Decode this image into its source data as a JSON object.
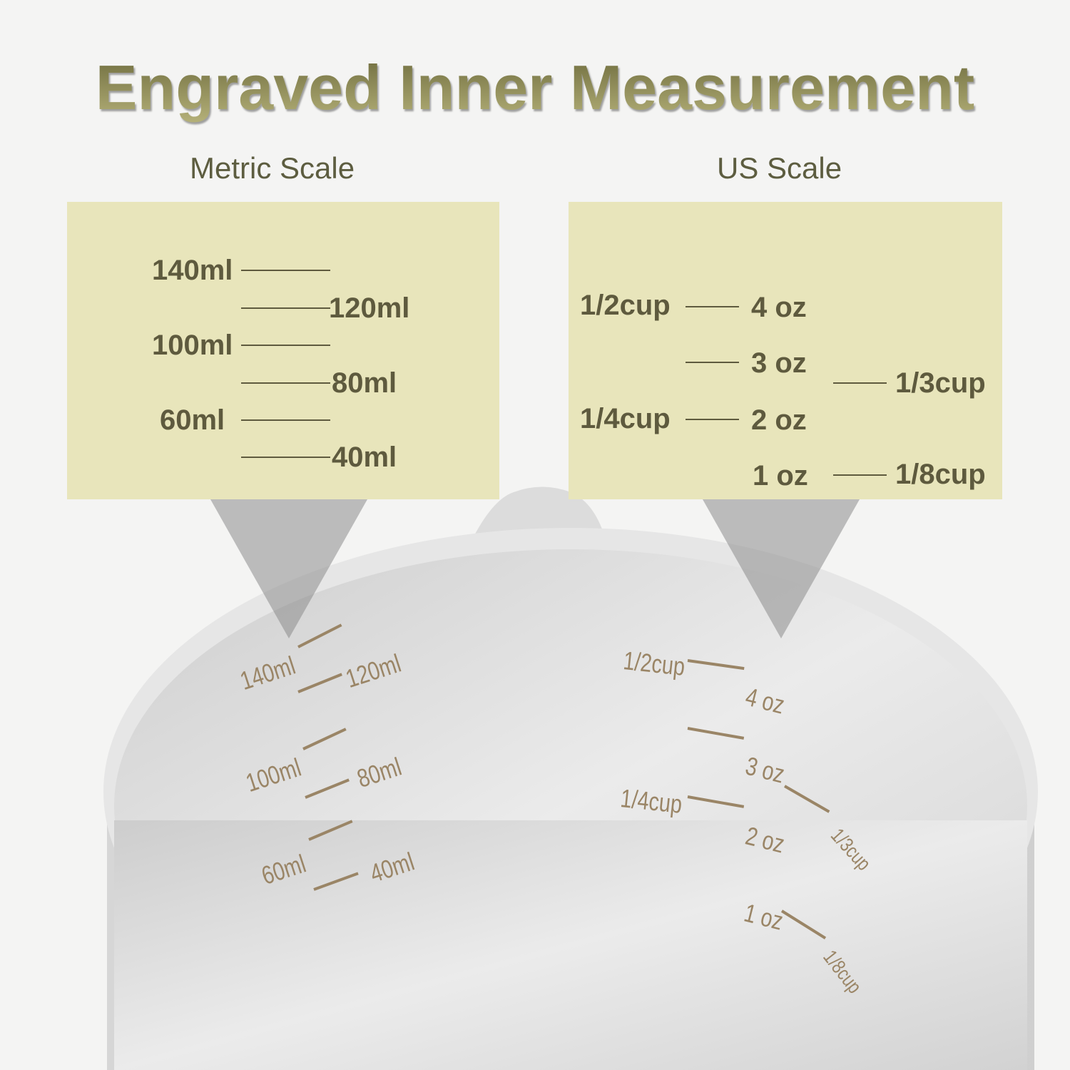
{
  "title": "Engraved Inner Measurement",
  "metric": {
    "heading": "Metric Scale",
    "labels": [
      "140ml",
      "120ml",
      "100ml",
      "80ml",
      "60ml",
      "40ml"
    ]
  },
  "us": {
    "heading": "US Scale",
    "cups_left": [
      "1/2cup",
      "1/4cup"
    ],
    "oz": [
      "4 oz",
      "3 oz",
      "2 oz",
      "1 oz"
    ],
    "cups_right": [
      "1/3cup",
      "1/8cup"
    ]
  },
  "colors": {
    "panel": "#e8e5bb",
    "label": "#5e5a3e",
    "engraving": "#9a8566",
    "title_gold": "#8d8a55"
  }
}
